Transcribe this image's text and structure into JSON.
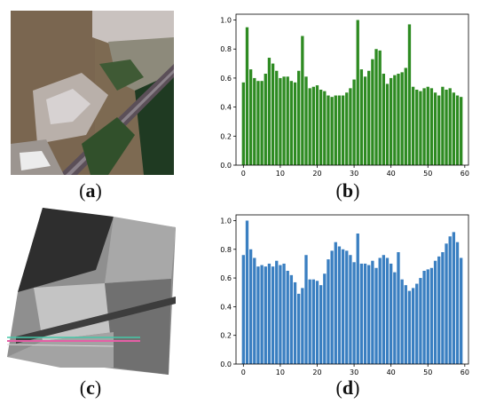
{
  "captions": {
    "a": "a",
    "b": "b",
    "c": "c",
    "d": "d"
  },
  "images": {
    "a": {
      "description_icon": "satellite-optical-image"
    },
    "c": {
      "description_icon": "sar-grayscale-image"
    }
  },
  "colors": {
    "green": "#2e8b22",
    "blue": "#3a7fc1",
    "water": "#7d6a52"
  },
  "chart_data": [
    {
      "type": "bar",
      "name": "chart-b",
      "x_ticks": [
        0,
        10,
        20,
        30,
        40,
        50,
        60
      ],
      "y_ticks": [
        "0.0",
        "0.2",
        "0.4",
        "0.6",
        "0.8",
        "1.0"
      ],
      "xlim": [
        -2,
        61
      ],
      "ylim": [
        0,
        1.04
      ],
      "x": [
        0,
        1,
        2,
        3,
        4,
        5,
        6,
        7,
        8,
        9,
        10,
        11,
        12,
        13,
        14,
        15,
        16,
        17,
        18,
        19,
        20,
        21,
        22,
        23,
        24,
        25,
        26,
        27,
        28,
        29,
        30,
        31,
        32,
        33,
        34,
        35,
        36,
        37,
        38,
        39,
        40,
        41,
        42,
        43,
        44,
        45,
        46,
        47,
        48,
        49,
        50,
        51,
        52,
        53,
        54,
        55,
        56,
        57,
        58,
        59
      ],
      "values": [
        0.57,
        0.95,
        0.66,
        0.6,
        0.58,
        0.58,
        0.63,
        0.74,
        0.7,
        0.65,
        0.6,
        0.61,
        0.61,
        0.58,
        0.57,
        0.65,
        0.89,
        0.61,
        0.53,
        0.54,
        0.55,
        0.52,
        0.51,
        0.48,
        0.47,
        0.48,
        0.48,
        0.48,
        0.5,
        0.53,
        0.59,
        1.0,
        0.66,
        0.61,
        0.65,
        0.73,
        0.8,
        0.79,
        0.63,
        0.56,
        0.6,
        0.62,
        0.63,
        0.64,
        0.67,
        0.97,
        0.54,
        0.52,
        0.51,
        0.53,
        0.54,
        0.53,
        0.5,
        0.48,
        0.54,
        0.52,
        0.53,
        0.5,
        0.48,
        0.47
      ],
      "grid": false,
      "legend": "none"
    },
    {
      "type": "bar",
      "name": "chart-d",
      "x_ticks": [
        0,
        10,
        20,
        30,
        40,
        50,
        60
      ],
      "y_ticks": [
        "0.0",
        "0.2",
        "0.4",
        "0.6",
        "0.8",
        "1.0"
      ],
      "xlim": [
        -2,
        61
      ],
      "ylim": [
        0,
        1.04
      ],
      "x": [
        0,
        1,
        2,
        3,
        4,
        5,
        6,
        7,
        8,
        9,
        10,
        11,
        12,
        13,
        14,
        15,
        16,
        17,
        18,
        19,
        20,
        21,
        22,
        23,
        24,
        25,
        26,
        27,
        28,
        29,
        30,
        31,
        32,
        33,
        34,
        35,
        36,
        37,
        38,
        39,
        40,
        41,
        42,
        43,
        44,
        45,
        46,
        47,
        48,
        49,
        50,
        51,
        52,
        53,
        54,
        55,
        56,
        57,
        58,
        59
      ],
      "values": [
        0.76,
        1.0,
        0.8,
        0.74,
        0.68,
        0.69,
        0.68,
        0.7,
        0.68,
        0.72,
        0.69,
        0.7,
        0.65,
        0.62,
        0.57,
        0.49,
        0.53,
        0.76,
        0.59,
        0.59,
        0.58,
        0.55,
        0.63,
        0.73,
        0.79,
        0.85,
        0.82,
        0.8,
        0.79,
        0.76,
        0.71,
        0.91,
        0.7,
        0.7,
        0.69,
        0.72,
        0.67,
        0.74,
        0.76,
        0.74,
        0.7,
        0.64,
        0.78,
        0.59,
        0.55,
        0.51,
        0.53,
        0.56,
        0.6,
        0.65,
        0.66,
        0.67,
        0.72,
        0.75,
        0.78,
        0.84,
        0.89,
        0.92,
        0.85,
        0.74
      ],
      "grid": false,
      "legend": "none"
    }
  ]
}
